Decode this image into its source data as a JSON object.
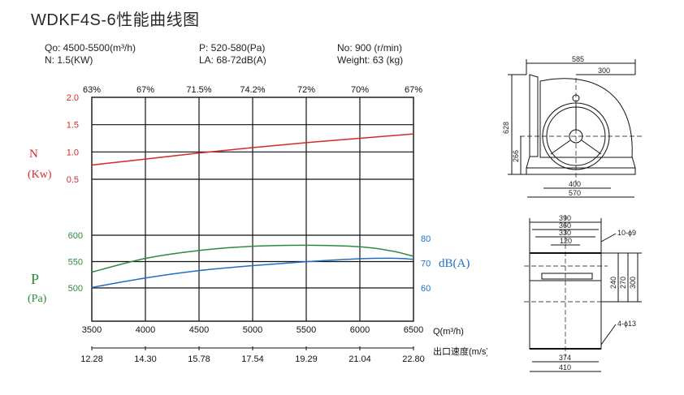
{
  "title": "WDKF4S-6性能曲线图",
  "specs": {
    "q": "Qo: 4500-5500(m³/h)",
    "p": "P: 520-580(Pa)",
    "n": "No: 900 (r/min)",
    "power": "N: 1.5(KW)",
    "la": "LA: 68-72dB(A)",
    "weight": "Weight: 63 (kg)"
  },
  "colors": {
    "power": "#d42a2a",
    "pressure": "#2e8a3e",
    "noise": "#1f6fc4",
    "grid": "#111111"
  },
  "chart_data": {
    "type": "line",
    "x": [
      3500,
      4000,
      4500,
      5000,
      5500,
      6000,
      6500
    ],
    "xlabel": "Q(m³/h)",
    "x_ticks": [
      "3500",
      "4000",
      "4500",
      "5000",
      "5500",
      "6000",
      "6500"
    ],
    "velocity_ticks": [
      "12.28",
      "14.30",
      "15.78",
      "17.54",
      "19.29",
      "21.04",
      "22.80"
    ],
    "velocity_label": "出口速度(m/s)",
    "efficiency_ticks": [
      "63%",
      "67%",
      "71.5%",
      "74.2%",
      "72%",
      "70%",
      "67%"
    ],
    "power_axis": {
      "label_1": "N",
      "label_2": "(Kw)",
      "ticks": [
        "2.0",
        "1.5",
        "1.0",
        "0.5"
      ],
      "ylim": [
        0.5,
        2.0
      ]
    },
    "pressure_axis": {
      "label_1": "P",
      "label_2": "(Pa)",
      "ticks": [
        "600",
        "550",
        "500"
      ],
      "ylim": [
        500,
        600
      ]
    },
    "noise_axis": {
      "label": "dB(A)",
      "ticks": [
        "80",
        "70",
        "60"
      ],
      "ylim": [
        60,
        80
      ]
    },
    "series": [
      {
        "axis": "power",
        "x": [
          3500,
          4000,
          4500,
          5000,
          5500,
          6000,
          6500
        ],
        "values": [
          0.76,
          0.87,
          0.98,
          1.08,
          1.17,
          1.25,
          1.33
        ]
      },
      {
        "axis": "pressure",
        "x": [
          3500,
          4000,
          4500,
          5000,
          5500,
          6000,
          6300,
          6500
        ],
        "values": [
          530,
          556,
          571,
          579,
          581,
          578,
          570,
          560
        ]
      },
      {
        "axis": "noise",
        "x": [
          3500,
          4000,
          4500,
          5000,
          5500,
          6000,
          6300,
          6500
        ],
        "values": [
          60.2,
          64.0,
          67.0,
          69.0,
          70.6,
          71.8,
          72.0,
          71.6
        ]
      }
    ]
  },
  "drawing": {
    "top": {
      "overall": "585",
      "half": "300",
      "height": "628",
      "center_height": "266",
      "base_inner": "400",
      "base_outer": "570"
    },
    "bottom": {
      "w390": "390",
      "w360": "360",
      "w330": "330",
      "w120": "120",
      "h240": "240",
      "h270": "270",
      "h300": "300",
      "w374": "374",
      "w410": "410",
      "holes_top": "10-ϕ9",
      "holes_bottom": "4-ϕ13"
    }
  }
}
